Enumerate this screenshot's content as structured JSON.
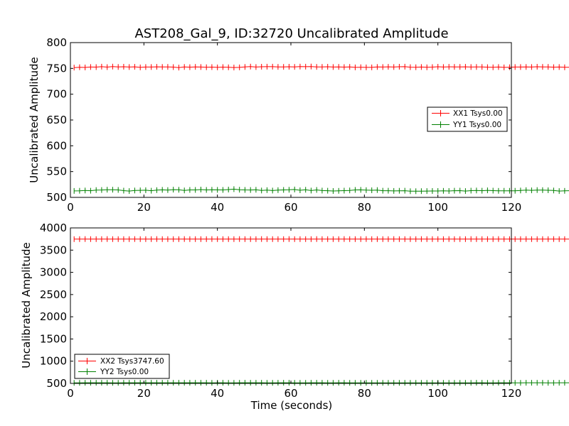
{
  "chart_data": [
    {
      "type": "line",
      "title": "AST208_Gal_9, ID:32720 Uncalibrated Amplitude",
      "xlabel": "",
      "ylabel": "Uncalibrated Amplitude",
      "xlim": [
        0,
        120
      ],
      "ylim": [
        500,
        800
      ],
      "xticks": [
        "0",
        "20",
        "40",
        "60",
        "80",
        "100",
        "120"
      ],
      "yticks": [
        "500",
        "550",
        "600",
        "650",
        "700",
        "750",
        "800"
      ],
      "legend_position": "center-right",
      "grid": false,
      "series": [
        {
          "name": "XX1 Tsys0.00",
          "color": "#ff0000",
          "x_start": 1,
          "x_step": 1.5,
          "values": [
            751.6,
            752.3,
            751.8,
            752.6,
            752.5,
            753.3,
            752.5,
            753.5,
            752.8,
            753.2,
            752.7,
            753.1,
            752.0,
            752.7,
            752.6,
            753.1,
            752.8,
            753.0,
            752.5,
            751.6,
            752.8,
            752.4,
            752.9,
            752.6,
            752.3,
            752.5,
            752.0,
            752.5,
            752.1,
            751.7,
            752.0,
            752.8,
            753.5,
            752.7,
            753.2,
            753.3,
            753.3,
            752.9,
            753.0,
            753.2,
            752.9,
            753.5,
            753.3,
            753.6,
            753.0,
            752.9,
            753.2,
            752.6,
            752.9,
            752.5,
            752.9,
            752.0,
            752.2,
            752.0,
            752.0,
            752.8,
            752.7,
            753.1,
            752.7,
            753.2,
            753.3,
            752.4,
            752.2,
            752.6,
            752.1,
            752.5,
            753.2,
            752.7,
            753.1,
            752.9,
            752.9,
            753.1,
            752.7,
            752.8,
            752.8,
            752.4,
            752.1,
            752.7,
            752.0,
            752.3,
            752.6,
            752.7,
            752.8,
            752.7,
            753.2,
            753.0,
            752.9,
            752.4,
            752.6,
            752.1,
            752.1,
            752.2,
            752.0,
            751.9,
            752.3,
            752.6,
            751.6,
            751.8,
            751.2,
            751.7,
            751.6,
            752.2,
            751.1,
            751.4,
            751.5,
            751.3
          ]
        },
        {
          "name": "YY1 Tsys0.00",
          "color": "#008000",
          "x_start": 1,
          "x_step": 1.5,
          "values": [
            512.5,
            512.8,
            513.3,
            513.0,
            514.2,
            514.3,
            514.8,
            514.9,
            514.4,
            513.1,
            512.3,
            513.3,
            513.6,
            513.9,
            513.0,
            514.1,
            514.6,
            514.2,
            515.0,
            514.7,
            513.5,
            514.4,
            514.4,
            515.2,
            514.5,
            514.7,
            514.6,
            514.5,
            515.2,
            515.9,
            514.8,
            514.4,
            514.3,
            514.7,
            513.3,
            514.0,
            513.2,
            514.0,
            514.5,
            514.7,
            515.3,
            513.8,
            514.7,
            513.2,
            514.4,
            513.2,
            512.9,
            512.4,
            512.6,
            513.1,
            513.5,
            514.4,
            514.6,
            514.1,
            513.8,
            514.2,
            512.9,
            513.0,
            512.5,
            512.8,
            512.9,
            512.0,
            512.0,
            512.1,
            512.2,
            512.4,
            512.4,
            512.7,
            512.4,
            513.0,
            513.1,
            512.3,
            513.1,
            513.3,
            512.9,
            513.6,
            513.1,
            512.7,
            512.8,
            512.8,
            512.8,
            513.4,
            514.0,
            513.6,
            514.2,
            514.1,
            513.7,
            513.3,
            512.3,
            512.6,
            512.9,
            513.2,
            513.7,
            513.5,
            513.8,
            514.2,
            513.1,
            513.2,
            514.5,
            514.5,
            516.0,
            515.3,
            514.5,
            513.5,
            513.7,
            513.0
          ]
        }
      ]
    },
    {
      "type": "line",
      "title": "",
      "xlabel": "Time (seconds)",
      "ylabel": "Uncalibrated Amplitude",
      "xlim": [
        0,
        120
      ],
      "ylim": [
        500,
        4000
      ],
      "xticks": [
        "0",
        "20",
        "40",
        "60",
        "80",
        "100",
        "120"
      ],
      "yticks": [
        "500",
        "1000",
        "1500",
        "2000",
        "2500",
        "3000",
        "3500",
        "4000"
      ],
      "legend_position": "lower-left",
      "grid": false,
      "series": [
        {
          "name": "XX2 Tsys3747.60",
          "color": "#ff0000",
          "x_start": 1,
          "x_step": 1.5,
          "values": [
            3748,
            3747,
            3749,
            3748,
            3747,
            3748,
            3749,
            3748,
            3747,
            3748,
            3748,
            3749,
            3748,
            3747,
            3748,
            3749,
            3748,
            3748,
            3747,
            3748,
            3749,
            3748,
            3748,
            3747,
            3748,
            3749,
            3748,
            3747,
            3748,
            3748,
            3749,
            3748,
            3747,
            3748,
            3749,
            3748,
            3748,
            3747,
            3748,
            3749,
            3748,
            3748,
            3747,
            3748,
            3749,
            3748,
            3747,
            3748,
            3748,
            3749,
            3748,
            3747,
            3748,
            3749,
            3748,
            3748,
            3747,
            3748,
            3749,
            3748,
            3748,
            3747,
            3748,
            3749,
            3748,
            3747,
            3748,
            3748,
            3749,
            3748,
            3747,
            3748,
            3749,
            3748,
            3748,
            3747,
            3748,
            3749,
            3748,
            3748,
            3747,
            3748,
            3749,
            3748,
            3747,
            3748,
            3748,
            3749,
            3748,
            3747,
            3748,
            3749,
            3748,
            3748,
            3747,
            3746,
            3745,
            3744,
            3740,
            3738,
            3735,
            3733,
            3736,
            3734,
            3735,
            3734
          ]
        },
        {
          "name": "YY2 Tsys0.00",
          "color": "#008000",
          "x_start": 1,
          "x_step": 1.5,
          "values": [
            513,
            513,
            514,
            514,
            515,
            515,
            514,
            513,
            513,
            514,
            514,
            514,
            515,
            515,
            514,
            514,
            515,
            515,
            515,
            515,
            515,
            515,
            514,
            514,
            514,
            513,
            514,
            514,
            513,
            513,
            514,
            514,
            514,
            514,
            514,
            513,
            513,
            514,
            514,
            514,
            513,
            513,
            513,
            514,
            514,
            514,
            513,
            513,
            514,
            514,
            513,
            513,
            512,
            512,
            512,
            513,
            513,
            512,
            512,
            513,
            513,
            513,
            512,
            512,
            513,
            513,
            513,
            513,
            513,
            512,
            512,
            513,
            513,
            514,
            514,
            513,
            513,
            514,
            514,
            514,
            513,
            513,
            514,
            514,
            514,
            514,
            513,
            513,
            514,
            514,
            515,
            515,
            514,
            514,
            514,
            514,
            513,
            513,
            514,
            514,
            515,
            515,
            514,
            514,
            513,
            513
          ]
        }
      ]
    }
  ]
}
